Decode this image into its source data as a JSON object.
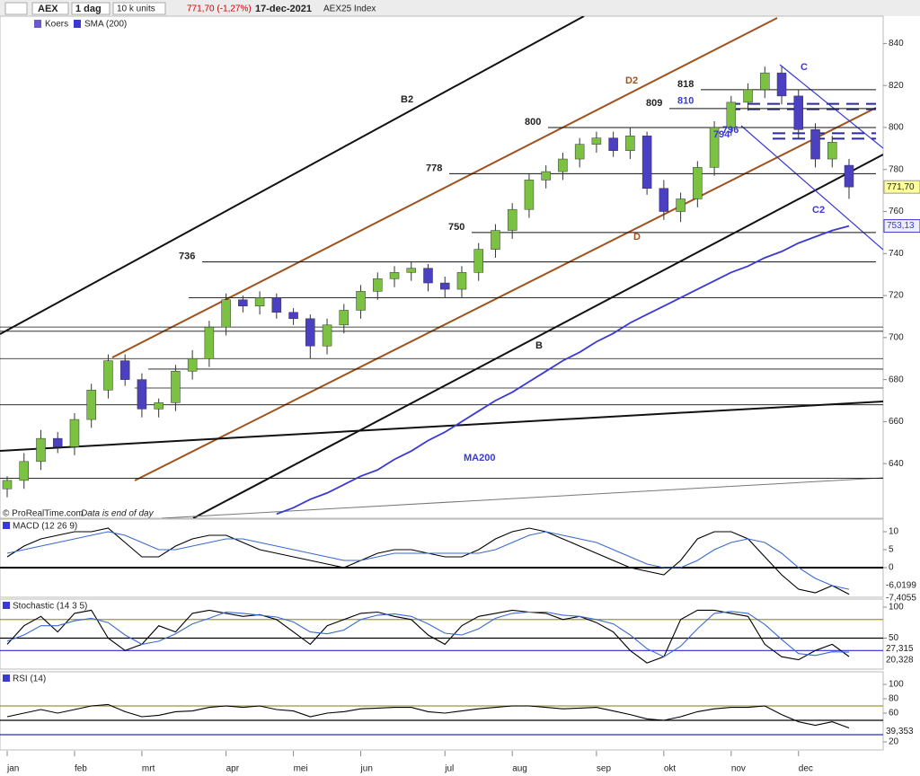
{
  "header": {
    "symbol": "AEX",
    "period": "1 dag",
    "units": "10 k units",
    "quote": "771,70 (-1,27%)",
    "date": "17-dec-2021",
    "index": "AEX25 Index"
  },
  "footer": {
    "source": "© ProRealTime.com",
    "note": "Data is end of day"
  },
  "chart_data": [
    {
      "type": "candlestick",
      "price_name": "Koers",
      "categories": [
        "jan",
        null,
        null,
        null,
        "feb",
        null,
        null,
        null,
        "mrt",
        null,
        null,
        null,
        null,
        "apr",
        null,
        null,
        null,
        "mei",
        null,
        null,
        null,
        "jun",
        null,
        null,
        null,
        null,
        "jul",
        null,
        null,
        null,
        "aug",
        null,
        null,
        null,
        null,
        "sep",
        null,
        null,
        null,
        "okt",
        null,
        null,
        null,
        "nov",
        null,
        null,
        null,
        "dec",
        null,
        null,
        null
      ],
      "open": [
        628,
        632,
        641,
        652,
        648,
        661,
        675,
        689,
        680,
        666,
        669,
        684,
        690,
        705,
        718,
        715,
        719,
        712,
        709,
        696,
        706,
        713,
        722,
        728,
        731,
        733,
        726,
        723,
        731,
        742,
        751,
        761,
        775,
        779,
        785,
        792,
        795,
        789,
        796,
        771,
        760,
        766,
        781,
        800,
        812,
        818,
        826,
        815,
        799,
        785,
        782
      ],
      "high": [
        634,
        645,
        656,
        655,
        664,
        678,
        692,
        692,
        683,
        671,
        687,
        694,
        708,
        721,
        720,
        722,
        721,
        714,
        711,
        709,
        716,
        725,
        731,
        734,
        736,
        735,
        729,
        734,
        745,
        754,
        764,
        778,
        782,
        788,
        795,
        798,
        798,
        800,
        798,
        775,
        769,
        784,
        803,
        815,
        821,
        829,
        829,
        818,
        802,
        796,
        785
      ],
      "low": [
        624,
        628,
        637,
        645,
        644,
        657,
        671,
        677,
        662,
        662,
        665,
        680,
        686,
        701,
        712,
        711,
        709,
        706,
        690,
        692,
        702,
        709,
        718,
        724,
        727,
        722,
        719,
        719,
        727,
        738,
        747,
        757,
        771,
        775,
        781,
        788,
        786,
        785,
        768,
        756,
        755,
        762,
        777,
        796,
        808,
        814,
        811,
        795,
        781,
        781,
        766
      ],
      "close": [
        632,
        641,
        652,
        648,
        661,
        675,
        689,
        680,
        666,
        669,
        684,
        690,
        705,
        718,
        715,
        719,
        712,
        709,
        696,
        706,
        713,
        722,
        728,
        731,
        733,
        726,
        723,
        731,
        742,
        751,
        761,
        775,
        779,
        785,
        792,
        795,
        789,
        796,
        771,
        760,
        766,
        781,
        800,
        812,
        818,
        826,
        815,
        799,
        785,
        793,
        771.7
      ],
      "close_label": "771,70",
      "up_color": "#7cc242",
      "down_color": "#4b3fc2",
      "ylim": [
        614,
        853
      ],
      "yticks": [
        640,
        660,
        680,
        700,
        720,
        740,
        760,
        780,
        800,
        820,
        840
      ],
      "series": [
        {
          "name": "SMA (200)",
          "color": "#3a3ad0",
          "last_label": "753,13",
          "values": [
            null,
            null,
            null,
            null,
            null,
            null,
            null,
            null,
            null,
            null,
            null,
            null,
            null,
            null,
            null,
            null,
            616,
            619,
            623,
            626,
            630,
            634,
            637,
            642,
            646,
            651,
            655,
            660,
            665,
            670,
            674,
            679,
            684,
            689,
            693,
            698,
            702,
            707,
            711,
            715,
            719,
            723,
            727,
            731,
            734,
            738,
            741,
            745,
            748,
            751,
            753.13
          ]
        }
      ],
      "levels": [
        818,
        810,
        809,
        800,
        796,
        794,
        778,
        750,
        736
      ],
      "support_lines": [
        719,
        705,
        703,
        690,
        685,
        676,
        668,
        633
      ],
      "annotations": [
        "B2",
        "D2",
        "D",
        "B",
        "C",
        "C2",
        "MA200"
      ]
    },
    {
      "type": "line",
      "title": "MACD (12 26 9)",
      "ylim": [
        -8.25,
        13.5
      ],
      "yticks": [
        0,
        5,
        10
      ],
      "ref_lines": [
        {
          "value": 0,
          "color": "#000000"
        }
      ],
      "series": [
        {
          "color": "#000000",
          "last_label": "-7,4055",
          "values": [
            3,
            6,
            8,
            9,
            10,
            10,
            11,
            7,
            3,
            3,
            6,
            8,
            9,
            9,
            7,
            5,
            4,
            3,
            2,
            1,
            0,
            2,
            4,
            5,
            5,
            4,
            3,
            3,
            5,
            8,
            10,
            11,
            10,
            8,
            6,
            4,
            2,
            0,
            -1,
            -2,
            2,
            8,
            10,
            10,
            8,
            3,
            -2,
            -6,
            -7,
            -5,
            -7.4055
          ]
        },
        {
          "color": "#3a6ad0",
          "last_label": "-6,0199",
          "values": [
            4,
            5,
            6,
            7,
            8,
            9,
            10,
            9,
            7,
            5,
            5,
            6,
            7,
            8,
            8,
            7,
            6,
            5,
            4,
            3,
            2,
            2,
            3,
            4,
            4,
            4,
            4,
            4,
            4,
            5,
            7,
            9,
            10,
            9,
            8,
            7,
            5,
            3,
            1,
            0,
            0,
            2,
            5,
            7,
            8,
            7,
            4,
            0,
            -3,
            -5,
            -6.0199
          ]
        }
      ]
    },
    {
      "type": "line",
      "title": "Stochastic (14 3 5)",
      "ylim": [
        0,
        113
      ],
      "yticks": [
        50,
        100
      ],
      "ref_lines": [
        {
          "value": 80,
          "color": "#9a9a30"
        },
        {
          "value": 50,
          "color": "#000000"
        },
        {
          "value": 30,
          "color": "#2a2ad0"
        }
      ],
      "series": [
        {
          "color": "#000000",
          "last_label": "20,328",
          "values": [
            40,
            70,
            85,
            60,
            90,
            95,
            50,
            30,
            40,
            70,
            60,
            90,
            95,
            90,
            85,
            88,
            80,
            60,
            40,
            70,
            80,
            90,
            92,
            85,
            80,
            55,
            40,
            70,
            85,
            90,
            95,
            92,
            90,
            80,
            85,
            75,
            60,
            30,
            10,
            20,
            80,
            95,
            95,
            90,
            85,
            40,
            20,
            15,
            30,
            40,
            20.328
          ]
        },
        {
          "color": "#3a6ad0",
          "last_label": "27,315",
          "values": [
            45,
            55,
            70,
            70,
            78,
            82,
            75,
            55,
            40,
            45,
            57,
            73,
            82,
            92,
            90,
            87,
            84,
            76,
            60,
            57,
            63,
            80,
            87,
            89,
            85,
            73,
            58,
            55,
            65,
            82,
            90,
            92,
            92,
            87,
            85,
            80,
            73,
            55,
            33,
            20,
            37,
            65,
            90,
            93,
            90,
            72,
            48,
            25,
            22,
            28,
            27.315
          ]
        }
      ]
    },
    {
      "type": "line",
      "title": "RSI (14)",
      "ylim": [
        8.75,
        117.5
      ],
      "yticks": [
        20,
        60,
        80,
        100
      ],
      "ref_lines": [
        {
          "value": 70,
          "color": "#9a9a30"
        },
        {
          "value": 50,
          "color": "#000000"
        },
        {
          "value": 30,
          "color": "#2a2ad0"
        }
      ],
      "series": [
        {
          "color": "#000000",
          "last_label": "39,353",
          "values": [
            55,
            60,
            65,
            60,
            65,
            70,
            72,
            62,
            55,
            57,
            62,
            63,
            68,
            70,
            68,
            70,
            65,
            63,
            55,
            60,
            62,
            66,
            67,
            68,
            68,
            62,
            60,
            63,
            66,
            68,
            70,
            70,
            68,
            66,
            67,
            68,
            63,
            58,
            52,
            50,
            55,
            62,
            66,
            68,
            68,
            70,
            58,
            48,
            43,
            48,
            39.353
          ]
        }
      ]
    }
  ]
}
